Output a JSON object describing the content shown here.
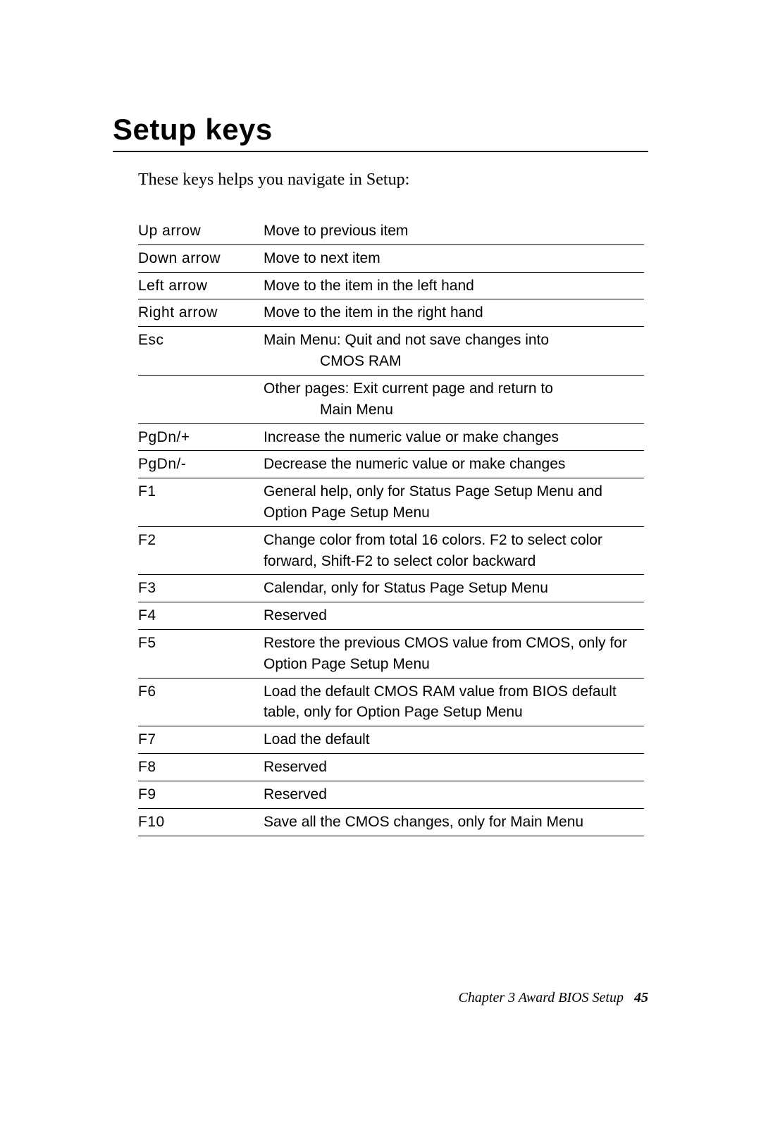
{
  "title": "Setup keys",
  "intro": "These keys helps you navigate in Setup:",
  "rows": [
    {
      "key": "Up arrow",
      "desc": "Move to previous item"
    },
    {
      "key": "Down arrow",
      "desc": "Move to next item"
    },
    {
      "key": "Left arrow",
      "desc": "Move to the item in the left hand"
    },
    {
      "key": "Right arrow",
      "desc": "Move to the item in the right hand"
    },
    {
      "key": "Esc",
      "desc": "Main Menu: Quit and not save changes into",
      "sub1": "CMOS RAM",
      "desc2": "Other pages: Exit current page and return to",
      "sub2": "Main Menu"
    },
    {
      "key": "PgDn/+",
      "desc": "Increase the numeric value or make changes"
    },
    {
      "key": "PgDn/-",
      "desc": "Decrease the numeric value or make changes"
    },
    {
      "key": "F1",
      "desc": "General help, only for Status Page Setup Menu and Option Page Setup Menu"
    },
    {
      "key": "F2",
      "desc": "Change color from total 16 colors. F2 to select color forward, Shift-F2 to select color backward"
    },
    {
      "key": "F3",
      "desc": "Calendar, only for Status Page Setup Menu"
    },
    {
      "key": "F4",
      "desc": "Reserved"
    },
    {
      "key": "F5",
      "desc": "Restore the previous CMOS value from CMOS, only for Option Page Setup Menu"
    },
    {
      "key": "F6",
      "desc": "Load the default CMOS RAM value from BIOS default table, only for Option Page Setup Menu"
    },
    {
      "key": "F7",
      "desc": "Load the default"
    },
    {
      "key": "F8",
      "desc": "Reserved"
    },
    {
      "key": "F9",
      "desc": "Reserved"
    },
    {
      "key": "F10",
      "desc": "Save all the CMOS changes, only for Main Menu"
    }
  ],
  "footer": {
    "chapter": "Chapter 3  Award BIOS Setup",
    "page": "45"
  }
}
